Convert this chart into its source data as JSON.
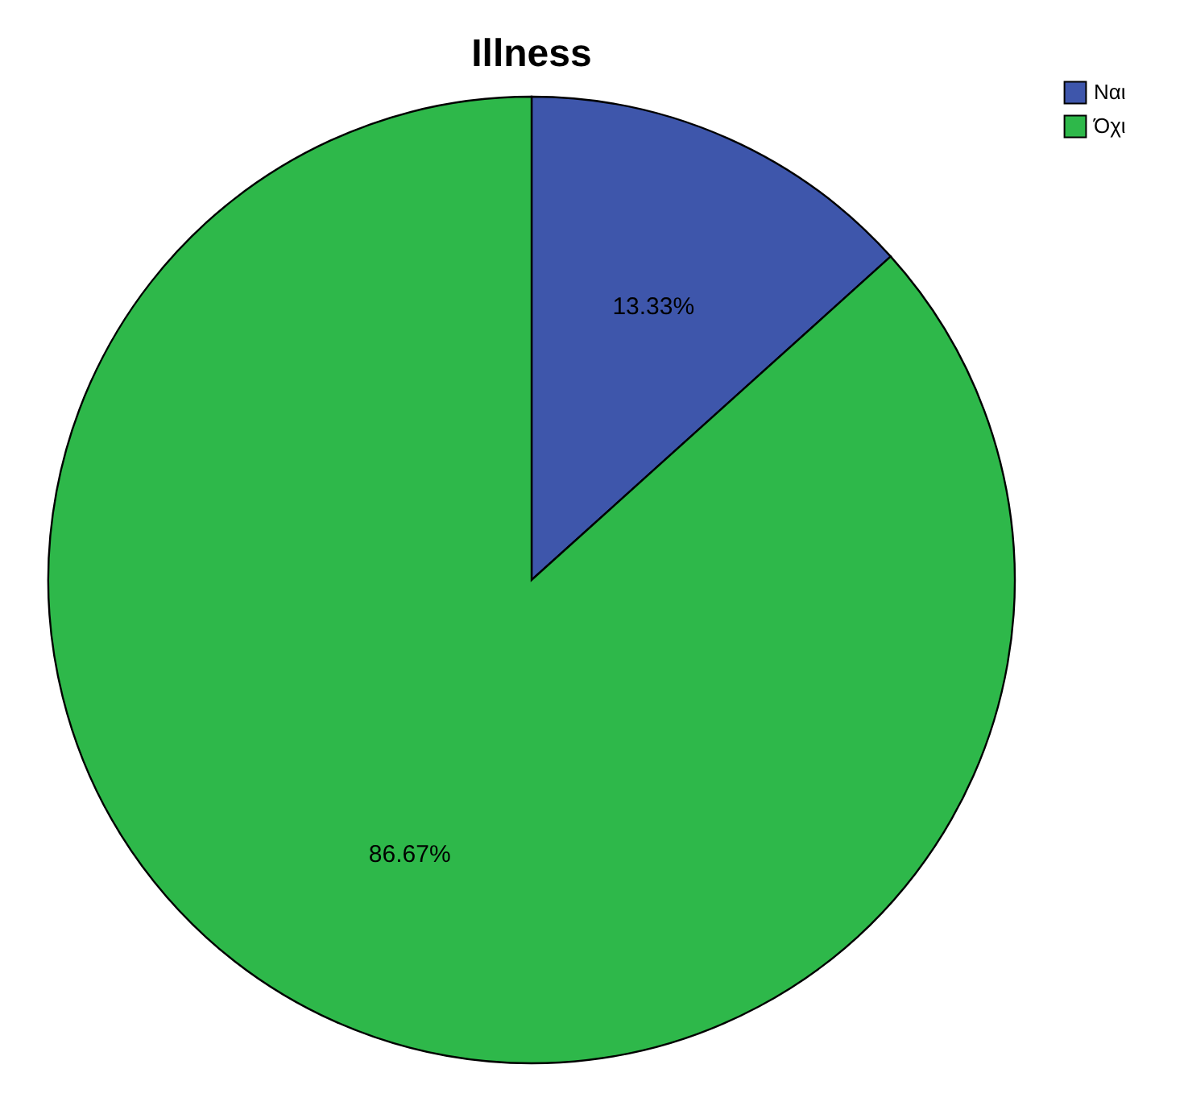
{
  "chart_data": {
    "type": "pie",
    "title": "Illness",
    "categories": [
      "Ναι",
      "Όχι"
    ],
    "values": [
      13.33,
      86.67
    ],
    "colors": [
      "#3e56ab",
      "#2eb84a"
    ],
    "value_labels": [
      "13.33%",
      "86.67%"
    ],
    "legend": "top right"
  }
}
